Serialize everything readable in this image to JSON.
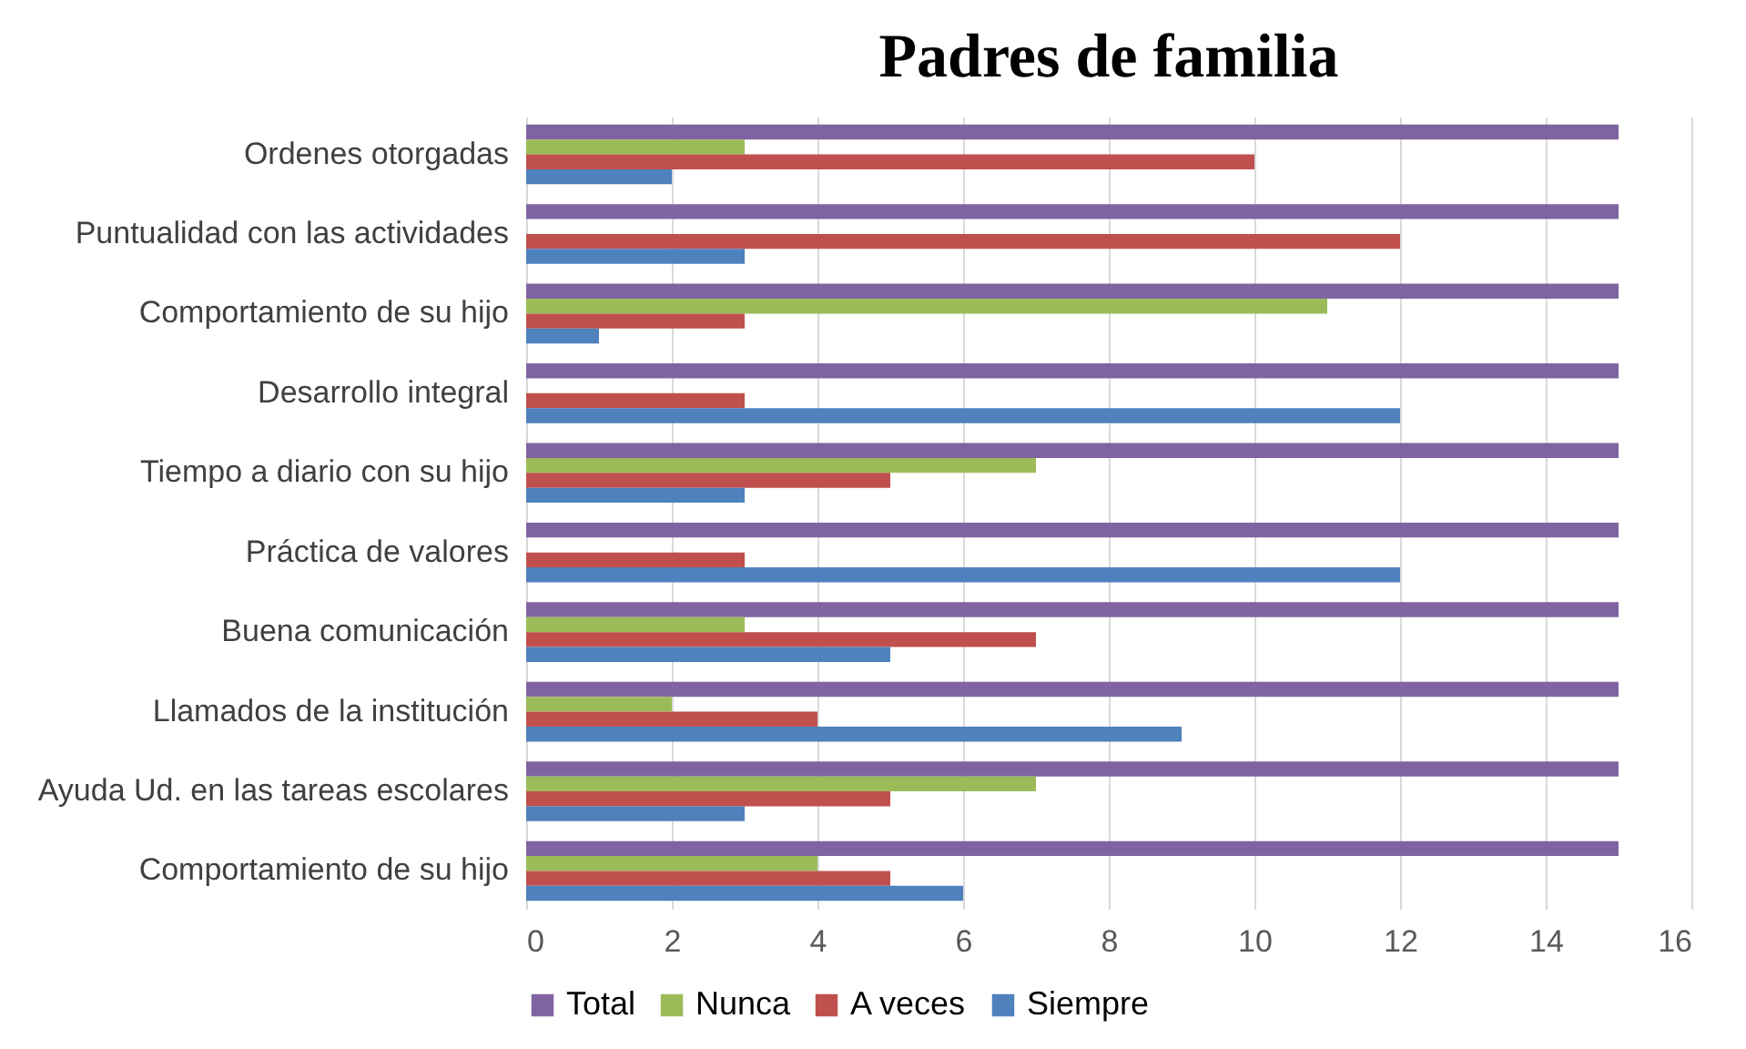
{
  "chart_data": {
    "type": "bar",
    "orientation": "horizontal",
    "title": "Padres de familia",
    "categories": [
      "Ordenes otorgadas",
      "Puntualidad con las actividades",
      "Comportamiento de su hijo",
      "Desarrollo integral",
      "Tiempo a diario con su hijo",
      "Práctica de valores",
      "Buena comunicación",
      "Llamados de la institución",
      "Ayuda Ud. en las tareas escolares",
      "Comportamiento de su hijo"
    ],
    "series": [
      {
        "name": "Total",
        "color": "#8064a2",
        "values": [
          15,
          15,
          15,
          15,
          15,
          15,
          15,
          15,
          15,
          15
        ]
      },
      {
        "name": "Nunca",
        "color": "#9bbb59",
        "values": [
          3,
          0,
          11,
          0,
          7,
          0,
          3,
          2,
          7,
          4
        ]
      },
      {
        "name": "A veces",
        "color": "#c0504d",
        "values": [
          10,
          12,
          3,
          3,
          5,
          3,
          7,
          4,
          5,
          5
        ]
      },
      {
        "name": "Siempre",
        "color": "#4f81bd",
        "values": [
          2,
          3,
          1,
          12,
          3,
          12,
          5,
          9,
          3,
          6
        ]
      }
    ],
    "xlim": [
      0,
      16
    ],
    "xticks": [
      0,
      2,
      4,
      6,
      8,
      10,
      12,
      14,
      16
    ],
    "grid": "x",
    "legend": "bottom"
  }
}
